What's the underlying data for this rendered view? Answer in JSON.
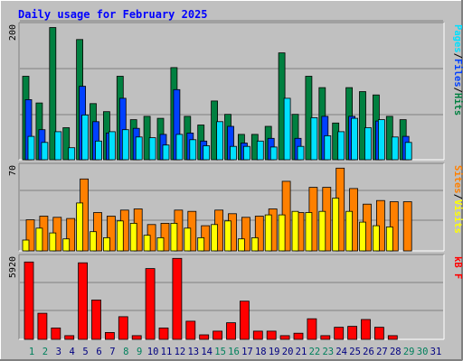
{
  "chart_data": {
    "type": "bar",
    "title": "Daily usage for February 2025",
    "colors": {
      "background": "#c0c0c0",
      "title": "#0000ff",
      "hits": "#008040",
      "files": "#0040ff",
      "pages": "#00e0ff",
      "visits": "#ffff00",
      "sites": "#ff8000",
      "kbytes": "#ff0000",
      "weekday_label": "#000080",
      "weekend_label": "#00805c"
    },
    "days": [
      "1",
      "2",
      "3",
      "4",
      "5",
      "6",
      "7",
      "8",
      "9",
      "10",
      "11",
      "12",
      "13",
      "14",
      "15",
      "16",
      "17",
      "18",
      "19",
      "20",
      "21",
      "22",
      "23",
      "24",
      "25",
      "26",
      "27",
      "28",
      "29",
      "30",
      "31"
    ],
    "weekend_days": [
      "1",
      "2",
      "8",
      "9",
      "15",
      "16",
      "22",
      "23",
      "29",
      "30"
    ],
    "panels": [
      {
        "id": "traffic",
        "max_label": "200",
        "ylim": [
          0,
          200
        ],
        "legend": [
          "Pages",
          "Files",
          "Hits"
        ],
        "series": [
          {
            "name": "Hits",
            "values": [
              125,
              85,
              198,
              48,
              180,
              84,
              72,
              125,
              60,
              65,
              62,
              138,
              65,
              52,
              88,
              68,
              38,
              38,
              50,
              160,
              68,
              125,
              108,
              55,
              108,
              102,
              97,
              65,
              60,
              0,
              0
            ]
          },
          {
            "name": "Files",
            "values": [
              90,
              45,
              0,
              0,
              110,
              57,
              40,
              92,
              47,
              0,
              38,
              105,
              40,
              28,
              0,
              50,
              25,
              0,
              32,
              0,
              32,
              0,
              65,
              0,
              65,
              0,
              58,
              0,
              35,
              0,
              0
            ]
          },
          {
            "name": "Pages",
            "values": [
              35,
              26,
              42,
              18,
              67,
              28,
              42,
              45,
              34,
              33,
              22,
              38,
              30,
              21,
              57,
              20,
              20,
              28,
              19,
              92,
              20,
              63,
              36,
              42,
              62,
              48,
              60,
              34,
              26,
              0,
              0
            ]
          }
        ]
      },
      {
        "id": "visitors",
        "max_label": "70",
        "ylim": [
          0,
          70
        ],
        "legend": [
          "Sites",
          "Visits"
        ],
        "series": [
          {
            "name": "Sites",
            "values": [
              26,
              29,
              28,
              27,
              60,
              32,
              29,
              34,
              35,
              22,
              23,
              34,
              33,
              21,
              34,
              31,
              28,
              29,
              35,
              58,
              32,
              53,
              53,
              69,
              52,
              39,
              42,
              41,
              41,
              0,
              0
            ]
          },
          {
            "name": "Visits",
            "values": [
              9,
              19,
              15,
              10,
              40,
              16,
              11,
              25,
              23,
              13,
              11,
              23,
              19,
              11,
              22,
              25,
              10,
              11,
              30,
              30,
              33,
              32,
              33,
              44,
              33,
              24,
              21,
              20,
              0,
              0,
              0
            ]
          }
        ]
      },
      {
        "id": "volume",
        "max_label": "5920",
        "ylim": [
          0,
          5920
        ],
        "legend": [
          "kB F"
        ],
        "series": [
          {
            "name": "kB F",
            "values": [
              5640,
              1900,
              830,
              270,
              5580,
              2870,
              500,
              1650,
              270,
              5160,
              830,
              5900,
              1320,
              330,
              600,
              1210,
              2780,
              600,
              600,
              270,
              450,
              1500,
              270,
              880,
              950,
              1450,
              880,
              270,
              0,
              0,
              0
            ]
          }
        ]
      }
    ]
  }
}
